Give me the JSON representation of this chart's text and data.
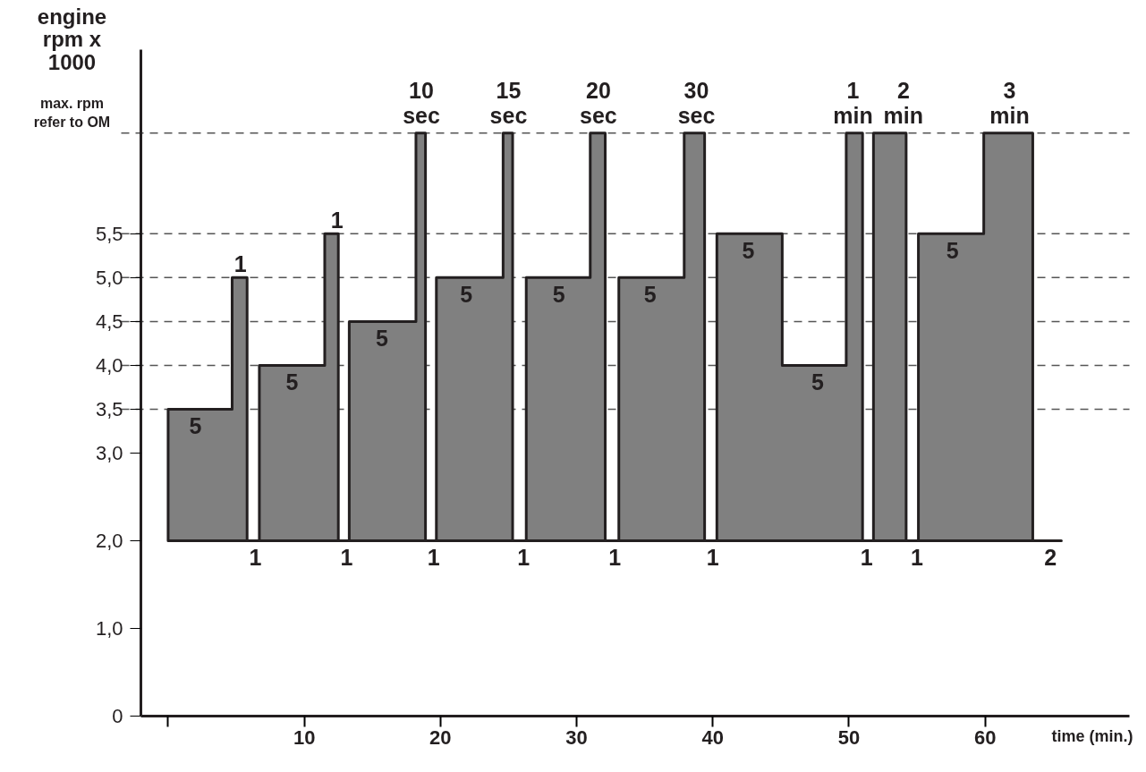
{
  "chart_data": {
    "type": "area",
    "ylabel": "engine\nrpm x\n1000",
    "xlabel": "time (min.)",
    "x": [
      0,
      0,
      4.7,
      4.7,
      5.8,
      5.8,
      6.7,
      6.7,
      11.5,
      11.5,
      12.5,
      12.5,
      13.3,
      13.3,
      18.2,
      18.2,
      18.9,
      18.9,
      19.7,
      19.7,
      24.6,
      24.6,
      25.3,
      25.3,
      26.3,
      26.3,
      31.0,
      31.0,
      32.1,
      32.1,
      33.1,
      33.1,
      37.9,
      37.9,
      39.4,
      39.4,
      40.3,
      40.3,
      45.1,
      45.1,
      49.8,
      49.8,
      51.0,
      51.0,
      51.8,
      51.8,
      54.2,
      54.2,
      55.1,
      55.1,
      59.9,
      59.9,
      63.5,
      63.5,
      65.6
    ],
    "series": [
      {
        "color": "#808080",
        "values": [
          2,
          3.5,
          3.5,
          5.0,
          5.0,
          2,
          2,
          4.0,
          4.0,
          5.5,
          5.5,
          2,
          2,
          4.5,
          4.5,
          6.65,
          6.65,
          2,
          2,
          5.0,
          5.0,
          6.65,
          6.65,
          2,
          2,
          5.0,
          5.0,
          6.65,
          6.65,
          2,
          2,
          5.0,
          5.0,
          6.65,
          6.65,
          2,
          2,
          5.5,
          5.5,
          4.0,
          4.0,
          6.65,
          6.65,
          2,
          2,
          6.65,
          6.65,
          2,
          2,
          5.5,
          5.5,
          6.65,
          6.65,
          2,
          2
        ]
      }
    ],
    "xlim": [
      -2,
      70.6
    ],
    "ylim": [
      0,
      7.6
    ],
    "xticks": [
      {
        "value": 0,
        "label": null
      },
      10,
      20,
      30,
      40,
      50,
      60
    ],
    "yticks": [
      0,
      {
        "value": 1,
        "label": "1,0"
      },
      {
        "value": 2,
        "label": "2,0"
      },
      {
        "value": 3,
        "label": "3,0"
      },
      {
        "value": 3.5,
        "label": "3,5"
      },
      {
        "value": 4,
        "label": "4,0"
      },
      {
        "value": 4.5,
        "label": "4,5"
      },
      {
        "value": 5,
        "label": "5,0"
      },
      {
        "value": 5.5,
        "label": "5,5"
      }
    ],
    "ref_lines": [
      {
        "axis": "y",
        "value": 3.5,
        "label": null,
        "line_style": "dashed"
      },
      {
        "axis": "y",
        "value": 4.0,
        "label": null,
        "line_style": "dashed"
      },
      {
        "axis": "y",
        "value": 4.5,
        "label": null,
        "line_style": "dashed"
      },
      {
        "axis": "y",
        "value": 5.0,
        "label": null,
        "line_style": "dashed"
      },
      {
        "axis": "y",
        "value": 5.5,
        "label": null,
        "line_style": "dashed"
      },
      {
        "axis": "y",
        "value": 6.65,
        "label": "max. rpm\nrefer to OM",
        "line_style": "dashed"
      }
    ],
    "annotations": [
      {
        "text": "5",
        "x": 2.0,
        "y": 3.5
      },
      {
        "text": "1",
        "x": 5.3,
        "y": 5.0
      },
      {
        "text": "5",
        "x": 9.1,
        "y": 4.0
      },
      {
        "text": "1",
        "x": 12.4,
        "y": 5.5
      },
      {
        "text": "5",
        "x": 15.7,
        "y": 4.5
      },
      {
        "text": "10\nsec",
        "x": 18.6,
        "y": 6.65
      },
      {
        "text": "5",
        "x": 21.9,
        "y": 5.0
      },
      {
        "text": "15\nsec",
        "x": 25.0,
        "y": 6.65
      },
      {
        "text": "5",
        "x": 28.7,
        "y": 5.0
      },
      {
        "text": "20\nsec",
        "x": 31.6,
        "y": 6.65
      },
      {
        "text": "5",
        "x": 35.4,
        "y": 5.0
      },
      {
        "text": "30\nsec",
        "x": 38.8,
        "y": 6.65
      },
      {
        "text": "5",
        "x": 42.6,
        "y": 5.5
      },
      {
        "text": "5",
        "x": 47.7,
        "y": 4.0
      },
      {
        "text": "1\nmin",
        "x": 50.3,
        "y": 6.65
      },
      {
        "text": "2\nmin",
        "x": 54.0,
        "y": 6.65
      },
      {
        "text": "5",
        "x": 57.6,
        "y": 5.5
      },
      {
        "text": "3\nmin",
        "x": 61.8,
        "y": 6.65
      },
      {
        "text": "1",
        "x": 6.4,
        "y": 2
      },
      {
        "text": "1",
        "x": 13.1,
        "y": 2
      },
      {
        "text": "1",
        "x": 19.5,
        "y": 2
      },
      {
        "text": "1",
        "x": 26.1,
        "y": 2
      },
      {
        "text": "1",
        "x": 32.8,
        "y": 2
      },
      {
        "text": "1",
        "x": 40.0,
        "y": 2
      },
      {
        "text": "1",
        "x": 51.3,
        "y": 2
      },
      {
        "text": "1",
        "x": 55.0,
        "y": 2
      },
      {
        "text": "2",
        "x": 64.8,
        "y": 2
      }
    ],
    "grid": false,
    "line_style": "solid"
  }
}
